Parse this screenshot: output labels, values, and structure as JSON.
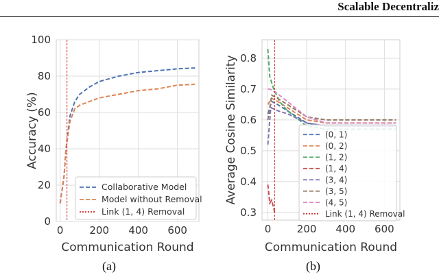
{
  "header": {
    "running_title": "Scalable Decentraliz"
  },
  "captions": [
    "(a)",
    "(b)"
  ],
  "chart_data": [
    {
      "type": "line",
      "xlabel": "Communication Round",
      "ylabel": "Accuracy (%)",
      "xlim": [
        -20,
        710
      ],
      "ylim": [
        0,
        100
      ],
      "xticks": [
        0,
        200,
        400,
        600
      ],
      "yticks": [
        0,
        20,
        40,
        60,
        80,
        100
      ],
      "grid": true,
      "legend_placement": "bottom-right",
      "series": [
        {
          "name": "Collaborative Model",
          "color": "#4c72b0",
          "dash": "dashed",
          "x": [
            0,
            20,
            30,
            50,
            75,
            100,
            150,
            200,
            300,
            400,
            500,
            600,
            690
          ],
          "y": [
            10,
            25,
            40,
            58,
            66,
            70,
            74,
            77,
            80,
            82,
            83,
            84,
            84.5
          ]
        },
        {
          "name": "Model without Removal",
          "color": "#dd8452",
          "dash": "dashed",
          "x": [
            0,
            20,
            30,
            50,
            75,
            100,
            150,
            200,
            300,
            400,
            500,
            600,
            690
          ],
          "y": [
            10,
            25,
            40,
            55,
            62,
            64,
            66,
            68,
            70,
            72,
            73,
            75,
            75.5
          ]
        }
      ],
      "vline": {
        "name": "Link (1, 4) Removal",
        "x": 35,
        "color": "#d62728"
      }
    },
    {
      "type": "line",
      "xlabel": "Communication Round",
      "ylabel": "Average Cosine Similarity",
      "xlim": [
        -30,
        680
      ],
      "ylim": [
        0.275,
        0.86
      ],
      "xticks": [
        0,
        200,
        400,
        600
      ],
      "yticks": [
        0.3,
        0.4,
        0.5,
        0.6,
        0.7,
        0.8
      ],
      "grid": true,
      "legend_placement": "bottom-right",
      "series": [
        {
          "name": "(0, 1)",
          "color": "#4c72b0",
          "x": [
            0,
            20,
            50,
            100,
            200,
            300,
            660
          ],
          "y": [
            0.62,
            0.66,
            0.65,
            0.63,
            0.59,
            0.58,
            0.58
          ]
        },
        {
          "name": "(0, 2)",
          "color": "#dd8452",
          "x": [
            0,
            20,
            50,
            100,
            200,
            300,
            660
          ],
          "y": [
            0.65,
            0.67,
            0.66,
            0.64,
            0.6,
            0.59,
            0.59
          ]
        },
        {
          "name": "(1, 2)",
          "color": "#55a868",
          "x": [
            0,
            10,
            30,
            60,
            100,
            200,
            300,
            660
          ],
          "y": [
            0.83,
            0.74,
            0.7,
            0.66,
            0.63,
            0.58,
            0.57,
            0.57
          ]
        },
        {
          "name": "(1, 4)",
          "color": "#c44e52",
          "x": [
            0,
            10,
            20,
            35
          ],
          "y": [
            0.39,
            0.33,
            0.34,
            0.3
          ]
        },
        {
          "name": "(3, 4)",
          "color": "#8172b3",
          "x": [
            0,
            15,
            50,
            100,
            200,
            300,
            660
          ],
          "y": [
            0.52,
            0.64,
            0.63,
            0.62,
            0.59,
            0.58,
            0.58
          ]
        },
        {
          "name": "(3, 5)",
          "color": "#937860",
          "x": [
            0,
            20,
            50,
            100,
            200,
            300,
            660
          ],
          "y": [
            0.6,
            0.68,
            0.67,
            0.65,
            0.61,
            0.6,
            0.6
          ]
        },
        {
          "name": "(4, 5)",
          "color": "#da8bc3",
          "x": [
            0,
            10,
            40,
            100,
            200,
            300,
            660
          ],
          "y": [
            0.7,
            0.7,
            0.69,
            0.66,
            0.61,
            0.59,
            0.59
          ]
        }
      ],
      "vline": {
        "name": "Link (1, 4) Removal",
        "x": 35,
        "color": "#d62728"
      }
    }
  ]
}
